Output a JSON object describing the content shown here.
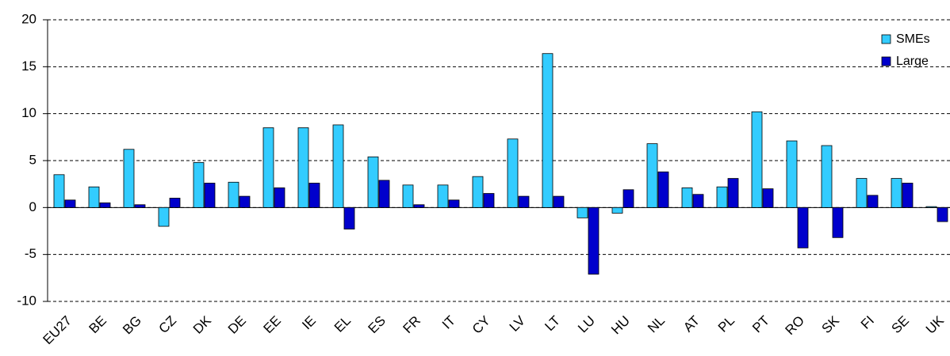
{
  "chart_data": {
    "type": "bar",
    "categories": [
      "EU27",
      "BE",
      "BG",
      "CZ",
      "DK",
      "DE",
      "EE",
      "IE",
      "EL",
      "ES",
      "FR",
      "IT",
      "CY",
      "LV",
      "LT",
      "LU",
      "HU",
      "NL",
      "AT",
      "PL",
      "PT",
      "RO",
      "SK",
      "FI",
      "SE",
      "UK"
    ],
    "series": [
      {
        "name": "SMEs",
        "color": "#33ccff",
        "values": [
          3.5,
          2.2,
          6.2,
          -2.0,
          4.8,
          2.7,
          8.5,
          8.5,
          8.8,
          5.4,
          2.4,
          2.4,
          3.3,
          7.3,
          16.4,
          -1.1,
          -0.6,
          6.8,
          2.1,
          2.2,
          10.2,
          7.1,
          6.6,
          3.1,
          3.1,
          0.1
        ]
      },
      {
        "name": "Large",
        "color": "#0000cc",
        "values": [
          0.8,
          0.5,
          0.3,
          1.0,
          2.6,
          1.2,
          2.1,
          2.6,
          -2.3,
          2.9,
          0.3,
          0.8,
          1.5,
          1.2,
          1.2,
          -7.1,
          1.9,
          3.8,
          1.4,
          3.1,
          2.0,
          -4.3,
          -3.2,
          1.3,
          2.6,
          -1.5
        ]
      }
    ],
    "ylim": [
      -10,
      20
    ],
    "yticks": [
      -10,
      -5,
      0,
      5,
      10,
      15,
      20
    ],
    "grid": true,
    "legend": "top-right"
  }
}
